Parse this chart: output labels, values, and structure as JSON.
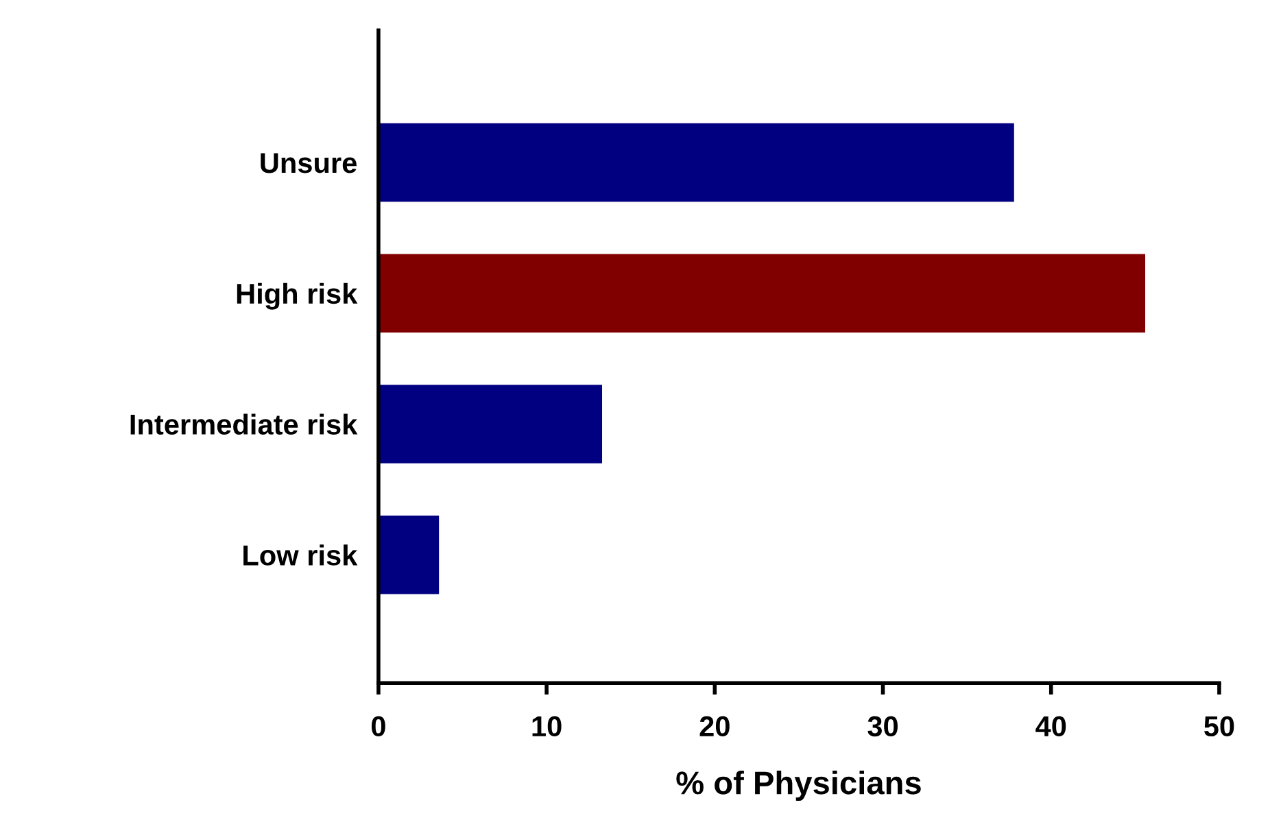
{
  "chart_data": {
    "type": "bar",
    "orientation": "horizontal",
    "categories": [
      "Unsure",
      "High risk",
      "Intermediate risk",
      "Low risk"
    ],
    "values": [
      37.8,
      45.6,
      13.3,
      3.6
    ],
    "colors": [
      "#000080",
      "#800000",
      "#000080",
      "#000080"
    ],
    "xlabel": "% of Physicians",
    "xlim": [
      0,
      50
    ],
    "xticks": [
      0,
      10,
      20,
      30,
      40,
      50
    ],
    "grid": false
  }
}
